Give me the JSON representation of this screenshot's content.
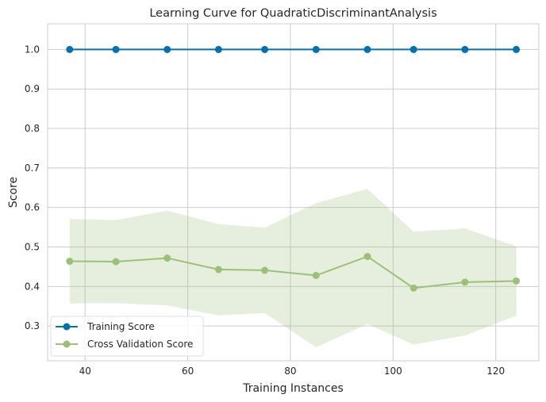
{
  "chart_data": {
    "type": "line",
    "title": "Learning Curve for QuadraticDiscriminantAnalysis",
    "xlabel": "Training Instances",
    "ylabel": "Score",
    "xlim": [
      32.7,
      128.4
    ],
    "ylim": [
      0.212,
      1.065
    ],
    "xticks": [
      40,
      60,
      80,
      100,
      120
    ],
    "yticks": [
      0.3,
      0.4,
      0.5,
      0.6,
      0.7,
      0.8,
      0.9,
      1.0
    ],
    "grid": true,
    "legend_position": "lower-left",
    "x": [
      37,
      46,
      56,
      66,
      75,
      85,
      95,
      104,
      114,
      124
    ],
    "series": [
      {
        "name": "Training Score",
        "color": "#0072b2",
        "values": [
          1.0,
          1.0,
          1.0,
          1.0,
          1.0,
          1.0,
          1.0,
          1.0,
          1.0,
          1.0
        ],
        "band_upper": [
          1.0,
          1.0,
          1.0,
          1.0,
          1.0,
          1.0,
          1.0,
          1.0,
          1.0,
          1.0
        ],
        "band_lower": [
          1.0,
          1.0,
          1.0,
          1.0,
          1.0,
          1.0,
          1.0,
          1.0,
          1.0,
          1.0
        ]
      },
      {
        "name": "Cross Validation Score",
        "color": "#9ac176",
        "values": [
          0.464,
          0.463,
          0.472,
          0.443,
          0.441,
          0.428,
          0.476,
          0.396,
          0.411,
          0.414
        ],
        "band_upper": [
          0.571,
          0.568,
          0.592,
          0.558,
          0.549,
          0.611,
          0.647,
          0.539,
          0.547,
          0.502
        ],
        "band_lower": [
          0.357,
          0.358,
          0.352,
          0.327,
          0.333,
          0.246,
          0.305,
          0.253,
          0.276,
          0.326
        ]
      }
    ]
  }
}
